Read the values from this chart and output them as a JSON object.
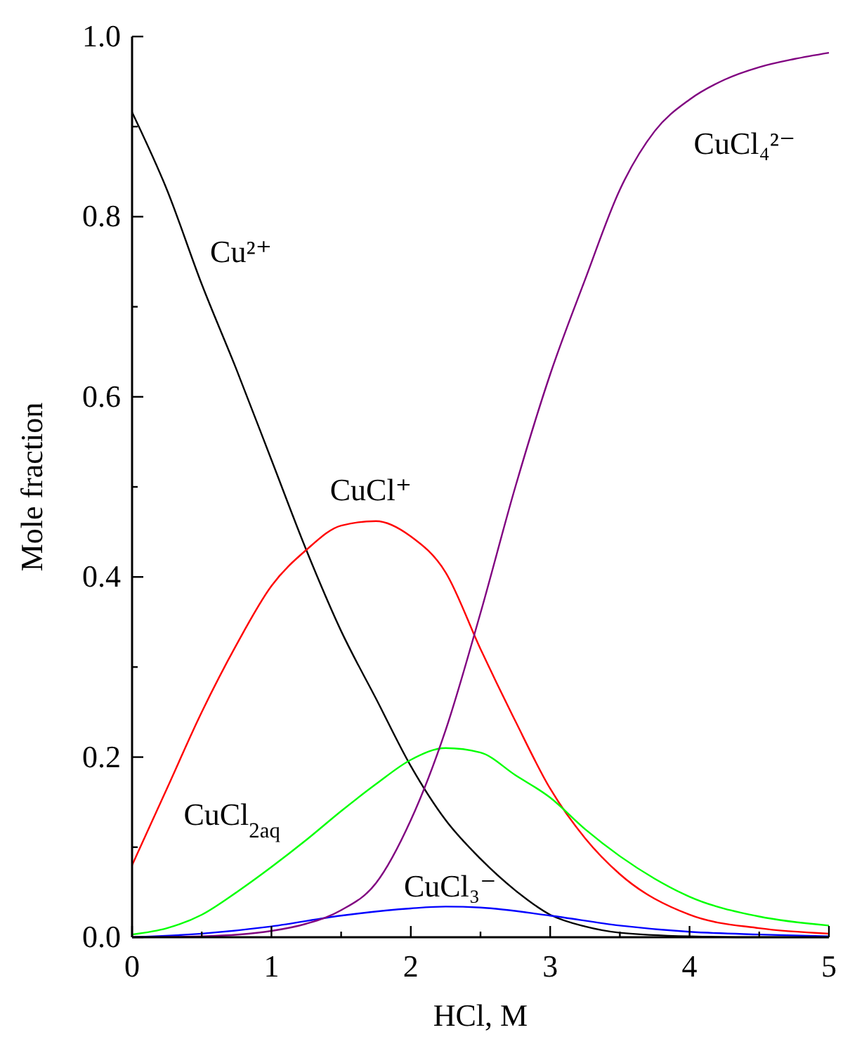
{
  "chart_data": {
    "type": "line",
    "xlabel": "HCl, M",
    "ylabel": "Mole fraction",
    "xlim": [
      0,
      5
    ],
    "ylim": [
      0,
      1
    ],
    "xticks": [
      0,
      {
        "value": 0.5,
        "label": null
      },
      1,
      {
        "value": 1.5,
        "label": null
      },
      2,
      {
        "value": 2.5,
        "label": null
      },
      3,
      {
        "value": 3.5,
        "label": null
      },
      4,
      {
        "value": 4.5,
        "label": null
      },
      5
    ],
    "yticks": [
      {
        "value": 0,
        "label": "0.0"
      },
      {
        "value": 0.1,
        "label": null
      },
      {
        "value": 0.2,
        "label": "0.2"
      },
      {
        "value": 0.3,
        "label": null
      },
      {
        "value": 0.4,
        "label": "0.4"
      },
      {
        "value": 0.5,
        "label": null
      },
      {
        "value": 0.6,
        "label": "0.6"
      },
      {
        "value": 0.7,
        "label": null
      },
      {
        "value": 0.8,
        "label": "0.8"
      },
      {
        "value": 0.9,
        "label": null
      },
      {
        "value": 1,
        "label": "1.0"
      }
    ],
    "grid": false,
    "marker": "none",
    "line_style": "solid",
    "series": [
      {
        "name": "Cu²⁺",
        "color": "#000000",
        "x": [
          0,
          0.25,
          0.5,
          0.75,
          1,
          1.25,
          1.5,
          1.75,
          2,
          2.25,
          2.5,
          2.75,
          3,
          3.25,
          3.5,
          4,
          4.5,
          5
        ],
        "values": [
          0.916,
          0.83,
          0.725,
          0.63,
          0.53,
          0.43,
          0.34,
          0.265,
          0.19,
          0.13,
          0.087,
          0.052,
          0.025,
          0.012,
          0.005,
          0.001,
          0,
          0
        ]
      },
      {
        "name": "CuCl⁺",
        "color": "#ff0000",
        "x": [
          0,
          0.25,
          0.5,
          0.75,
          1,
          1.25,
          1.5,
          1.75,
          2,
          2.25,
          2.5,
          2.75,
          3,
          3.25,
          3.5,
          4,
          4.5,
          5
        ],
        "values": [
          0.08,
          0.165,
          0.25,
          0.325,
          0.39,
          0.43,
          0.457,
          0.462,
          0.445,
          0.405,
          0.32,
          0.24,
          0.165,
          0.11,
          0.07,
          0.025,
          0.01,
          0.004
        ]
      },
      {
        "name": "CuCl$_{2aq}$",
        "color": "#00ff00",
        "x": [
          0,
          0.25,
          0.5,
          0.75,
          1,
          1.25,
          1.5,
          1.75,
          2,
          2.25,
          2.5,
          2.75,
          3,
          3.25,
          3.5,
          3.75,
          4,
          4.5,
          5
        ],
        "values": [
          0.003,
          0.01,
          0.025,
          0.05,
          0.078,
          0.108,
          0.14,
          0.17,
          0.197,
          0.21,
          0.205,
          0.18,
          0.155,
          0.12,
          0.09,
          0.065,
          0.045,
          0.023,
          0.013
        ]
      },
      {
        "name": "CuCl₃⁻",
        "color": "#0000ff",
        "x": [
          0,
          0.5,
          1,
          1.5,
          2,
          2.25,
          2.5,
          3,
          3.5,
          4,
          4.5,
          5
        ],
        "values": [
          0,
          0.004,
          0.012,
          0.024,
          0.032,
          0.034,
          0.033,
          0.024,
          0.013,
          0.006,
          0.003,
          0.001
        ]
      },
      {
        "name": "CuCl₄²⁻",
        "color": "#800080",
        "x": [
          0,
          0.5,
          1,
          1.25,
          1.5,
          1.75,
          2,
          2.25,
          2.5,
          2.75,
          3,
          3.25,
          3.5,
          3.75,
          4,
          4.25,
          4.5,
          4.75,
          5
        ],
        "values": [
          0,
          0.001,
          0.007,
          0.015,
          0.03,
          0.06,
          0.13,
          0.23,
          0.36,
          0.5,
          0.625,
          0.73,
          0.83,
          0.895,
          0.93,
          0.952,
          0.966,
          0.975,
          0.982
        ]
      }
    ]
  }
}
